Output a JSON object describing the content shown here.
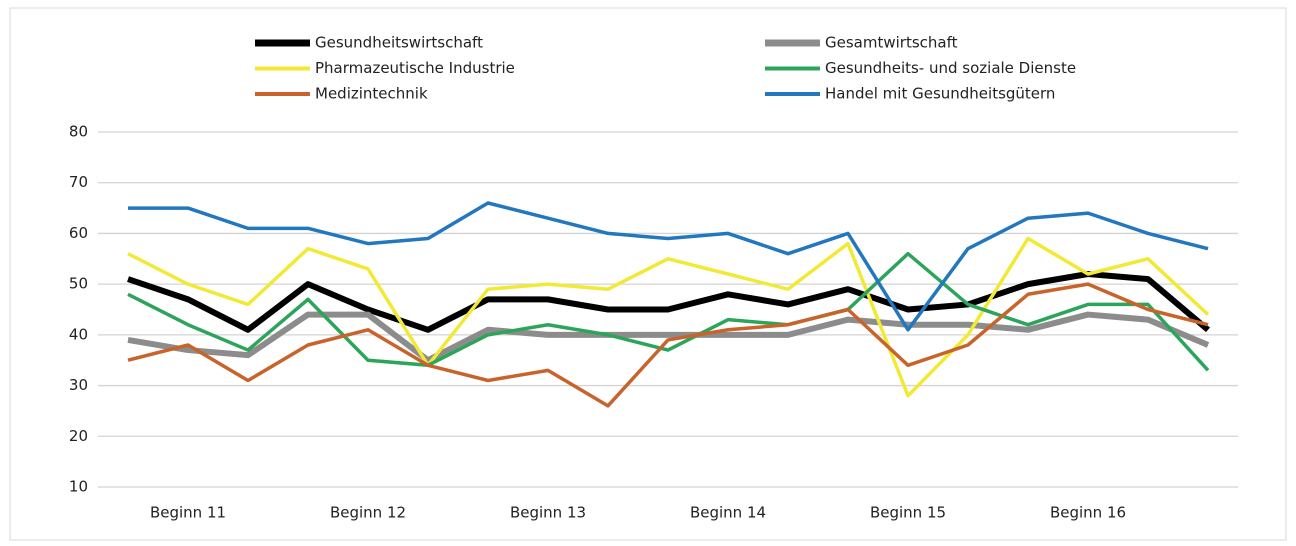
{
  "chart_data": {
    "type": "line",
    "categories": [
      null,
      "Beginn 11",
      null,
      null,
      "Beginn 12",
      null,
      null,
      "Beginn 13",
      null,
      null,
      "Beginn 14",
      null,
      null,
      "Beginn 15",
      null,
      null,
      "Beginn 16",
      null,
      null
    ],
    "series": [
      {
        "name": "Gesundheitswirtschaft",
        "color": "#000000",
        "values": [
          51,
          47,
          41,
          50,
          45,
          41,
          47,
          47,
          45,
          45,
          48,
          46,
          49,
          45,
          46,
          50,
          52,
          51,
          41
        ]
      },
      {
        "name": "Gesamtwirtschaft",
        "color": "#8c8c8c",
        "values": [
          39,
          37,
          36,
          44,
          44,
          35,
          41,
          40,
          40,
          40,
          40,
          40,
          43,
          42,
          42,
          41,
          44,
          43,
          38
        ]
      },
      {
        "name": "Pharmazeutische Industrie",
        "color": "#f2e936",
        "values": [
          56,
          50,
          46,
          57,
          53,
          34,
          49,
          50,
          49,
          55,
          52,
          49,
          58,
          28,
          40,
          59,
          52,
          55,
          44
        ]
      },
      {
        "name": "Gesundheits- und soziale Dienste",
        "color": "#2ca55a",
        "values": [
          48,
          42,
          37,
          47,
          35,
          34,
          40,
          42,
          40,
          37,
          43,
          42,
          45,
          56,
          46,
          42,
          46,
          46,
          33
        ]
      },
      {
        "name": "Medizintechnik",
        "color": "#c8642b",
        "values": [
          35,
          38,
          31,
          38,
          41,
          34,
          31,
          33,
          26,
          39,
          41,
          42,
          45,
          34,
          38,
          48,
          50,
          45,
          42
        ]
      },
      {
        "name": "Handel mit Gesundheitsgütern",
        "color": "#2377bf",
        "values": [
          65,
          65,
          61,
          61,
          58,
          59,
          66,
          63,
          60,
          59,
          60,
          56,
          60,
          41,
          57,
          63,
          64,
          60,
          57
        ]
      }
    ],
    "ylim": [
      10,
      80
    ],
    "yticks": [
      10,
      20,
      30,
      40,
      50,
      60,
      70,
      80
    ],
    "grid": true
  }
}
